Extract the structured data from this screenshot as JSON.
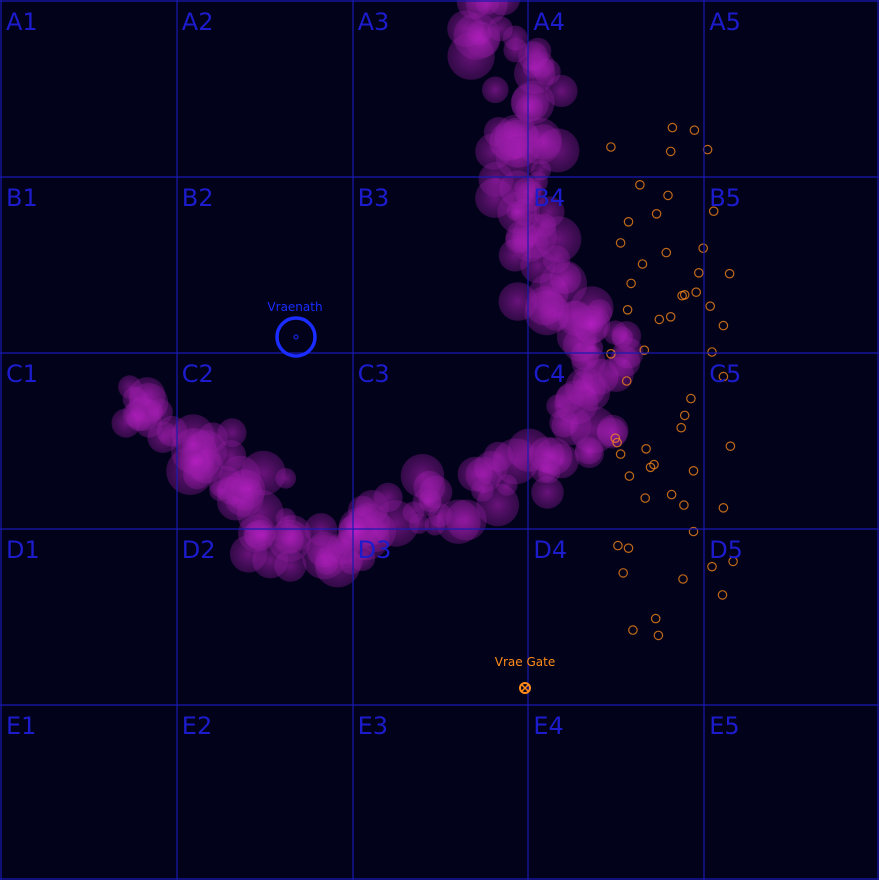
{
  "colors": {
    "background": "#02021a",
    "grid": "#1a1ab0",
    "cell_label": "#1c1ccc",
    "nebula": "#b41ec0",
    "station": "#ff8c1a",
    "marker": "#1a2cff"
  },
  "grid": {
    "rows": [
      "A",
      "B",
      "C",
      "D",
      "E"
    ],
    "cols": [
      "1",
      "2",
      "3",
      "4",
      "5"
    ],
    "labels": [
      [
        "A1",
        "A2",
        "A3",
        "A4",
        "A5"
      ],
      [
        "B1",
        "B2",
        "B3",
        "B4",
        "B5"
      ],
      [
        "C1",
        "C2",
        "C3",
        "C4",
        "C5"
      ],
      [
        "D1",
        "D2",
        "D3",
        "D4",
        "D5"
      ],
      [
        "E1",
        "E2",
        "E3",
        "E4",
        "E5"
      ]
    ]
  },
  "points_of_interest": [
    {
      "name": "Vraenath",
      "icon": "ring-marker-icon",
      "color": "#1a2cff"
    },
    {
      "name": "Vrae Gate",
      "icon": "gate-icon",
      "color": "#ff8c1a"
    }
  ],
  "nebula_path": [
    [
      0.555,
      0.0
    ],
    [
      0.57,
      0.05
    ],
    [
      0.61,
      0.1
    ],
    [
      0.6,
      0.16
    ],
    [
      0.585,
      0.22
    ],
    [
      0.62,
      0.27
    ],
    [
      0.615,
      0.32
    ],
    [
      0.66,
      0.36
    ],
    [
      0.69,
      0.4
    ],
    [
      0.68,
      0.45
    ],
    [
      0.65,
      0.5
    ],
    [
      0.6,
      0.54
    ],
    [
      0.53,
      0.56
    ],
    [
      0.47,
      0.58
    ],
    [
      0.42,
      0.61
    ],
    [
      0.38,
      0.63
    ],
    [
      0.33,
      0.62
    ],
    [
      0.3,
      0.58
    ],
    [
      0.26,
      0.54
    ],
    [
      0.22,
      0.51
    ],
    [
      0.18,
      0.48
    ],
    [
      0.14,
      0.46
    ]
  ],
  "asteroids": [
    [
      0.765,
      0.145
    ],
    [
      0.79,
      0.148
    ],
    [
      0.695,
      0.167
    ],
    [
      0.763,
      0.172
    ],
    [
      0.805,
      0.17
    ],
    [
      0.728,
      0.21
    ],
    [
      0.76,
      0.222
    ],
    [
      0.747,
      0.243
    ],
    [
      0.715,
      0.252
    ],
    [
      0.812,
      0.24
    ],
    [
      0.706,
      0.276
    ],
    [
      0.758,
      0.287
    ],
    [
      0.8,
      0.282
    ],
    [
      0.731,
      0.3
    ],
    [
      0.795,
      0.31
    ],
    [
      0.83,
      0.311
    ],
    [
      0.718,
      0.322
    ],
    [
      0.779,
      0.335
    ],
    [
      0.792,
      0.332
    ],
    [
      0.776,
      0.336
    ],
    [
      0.808,
      0.348
    ],
    [
      0.714,
      0.352
    ],
    [
      0.75,
      0.363
    ],
    [
      0.763,
      0.36
    ],
    [
      0.823,
      0.37
    ],
    [
      0.695,
      0.402
    ],
    [
      0.733,
      0.398
    ],
    [
      0.81,
      0.4
    ],
    [
      0.713,
      0.433
    ],
    [
      0.823,
      0.428
    ],
    [
      0.786,
      0.453
    ],
    [
      0.779,
      0.472
    ],
    [
      0.775,
      0.486
    ],
    [
      0.7,
      0.498
    ],
    [
      0.702,
      0.503
    ],
    [
      0.735,
      0.51
    ],
    [
      0.831,
      0.507
    ],
    [
      0.706,
      0.516
    ],
    [
      0.744,
      0.528
    ],
    [
      0.74,
      0.531
    ],
    [
      0.789,
      0.535
    ],
    [
      0.716,
      0.541
    ],
    [
      0.734,
      0.566
    ],
    [
      0.764,
      0.562
    ],
    [
      0.778,
      0.574
    ],
    [
      0.823,
      0.577
    ],
    [
      0.789,
      0.604
    ],
    [
      0.703,
      0.62
    ],
    [
      0.715,
      0.623
    ],
    [
      0.834,
      0.638
    ],
    [
      0.81,
      0.644
    ],
    [
      0.709,
      0.651
    ],
    [
      0.777,
      0.658
    ],
    [
      0.822,
      0.676
    ],
    [
      0.746,
      0.703
    ],
    [
      0.72,
      0.716
    ],
    [
      0.749,
      0.722
    ]
  ]
}
